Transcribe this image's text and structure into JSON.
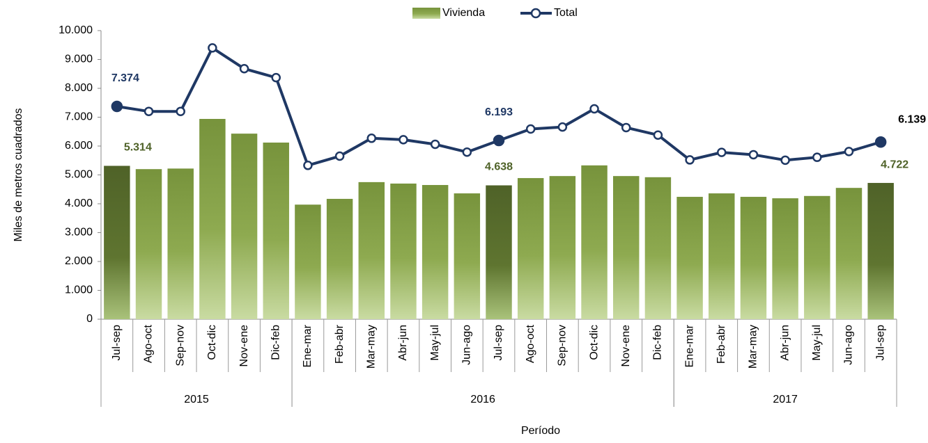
{
  "chart_data": {
    "type": "bar-line",
    "categories": [
      "Jul-sep",
      "Ago-oct",
      "Sep-nov",
      "Oct-dic",
      "Nov-ene",
      "Dic-feb",
      "Ene-mar",
      "Feb-abr",
      "Mar-may",
      "Abr-jun",
      "May-jul",
      "Jun-ago",
      "Jul-sep",
      "Ago-oct",
      "Sep-nov",
      "Oct-dic",
      "Nov-ene",
      "Dic-feb",
      "Ene-mar",
      "Feb-abr",
      "Mar-may",
      "Abr-jun",
      "May-jul",
      "Jun-ago",
      "Jul-sep"
    ],
    "groups": [
      {
        "label": "2015",
        "span": 6
      },
      {
        "label": "2016",
        "span": 12
      },
      {
        "label": "2017",
        "span": 7
      }
    ],
    "series": [
      {
        "name": "Vivienda",
        "type": "bar",
        "color": "#77933c",
        "highlight_color": "#4f6228",
        "values": [
          5314,
          5200,
          5220,
          6940,
          6430,
          6120,
          3970,
          4170,
          4750,
          4700,
          4650,
          4360,
          4638,
          4890,
          4960,
          5330,
          4960,
          4920,
          4240,
          4360,
          4240,
          4190,
          4270,
          4550,
          4722
        ],
        "value_labels": [
          "5.314",
          null,
          null,
          null,
          null,
          null,
          null,
          null,
          null,
          null,
          null,
          null,
          "4.638",
          null,
          null,
          null,
          null,
          null,
          null,
          null,
          null,
          null,
          null,
          null,
          "4.722"
        ]
      },
      {
        "name": "Total",
        "type": "line",
        "color": "#1f3864",
        "values": [
          7374,
          7200,
          7200,
          9400,
          8680,
          8370,
          5330,
          5650,
          6270,
          6220,
          6060,
          5790,
          6193,
          6590,
          6660,
          7290,
          6640,
          6380,
          5520,
          5780,
          5700,
          5510,
          5610,
          5810,
          6139
        ],
        "value_labels": [
          "7.374",
          null,
          null,
          null,
          null,
          null,
          null,
          null,
          null,
          null,
          null,
          null,
          "6.193",
          null,
          null,
          null,
          null,
          null,
          null,
          null,
          null,
          null,
          null,
          null,
          "6.139"
        ]
      }
    ],
    "ylabel": "Miles de metros cuadrados",
    "xlabel": "Período",
    "ylim": [
      0,
      10000
    ],
    "yticks": [
      0,
      {
        "value": 1000,
        "label": "1.000"
      },
      {
        "value": 2000,
        "label": "2.000"
      },
      {
        "value": 3000,
        "label": "3.000"
      },
      {
        "value": 4000,
        "label": "4.000"
      },
      {
        "value": 5000,
        "label": "5.000"
      },
      {
        "value": 6000,
        "label": "6.000"
      },
      {
        "value": 7000,
        "label": "7.000"
      },
      {
        "value": 8000,
        "label": "8.000"
      },
      {
        "value": 9000,
        "label": "9.000"
      },
      {
        "value": 10000,
        "label": "10.000"
      }
    ],
    "legend": "top",
    "grid": false
  }
}
